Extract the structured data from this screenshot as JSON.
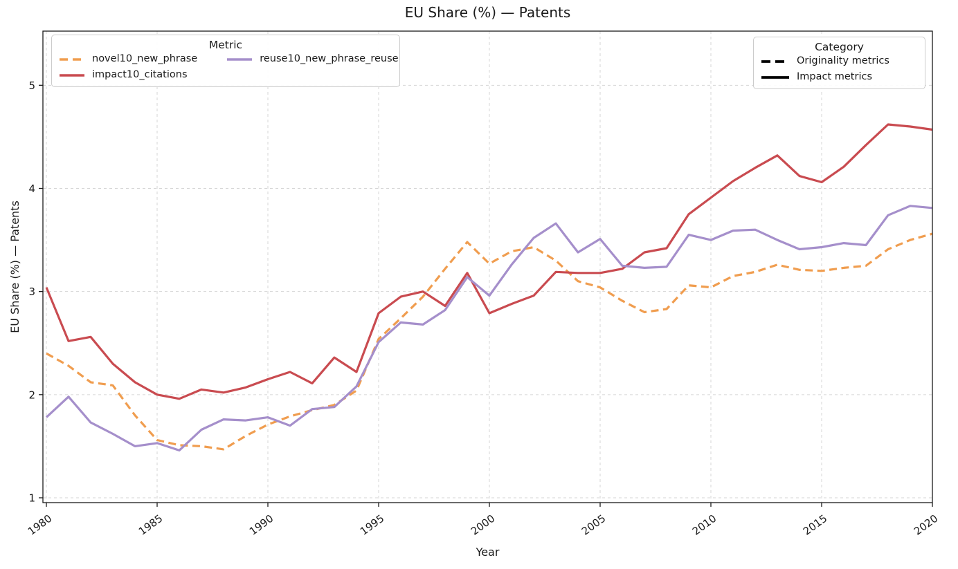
{
  "chart_data": {
    "type": "line",
    "title": "EU Share (%) — Patents",
    "xlabel": "Year",
    "ylabel": "EU Share (%) — Patents",
    "x_ticks": [
      1980,
      1985,
      1990,
      1995,
      2000,
      2005,
      2010,
      2015,
      2020
    ],
    "y_ticks": [
      1,
      2,
      3,
      4,
      5
    ],
    "xlim": [
      1980,
      2020
    ],
    "ylim": [
      0.95,
      5.53
    ],
    "grid": true,
    "grid_style": "dashed",
    "x": [
      1980,
      1981,
      1982,
      1983,
      1984,
      1985,
      1986,
      1987,
      1988,
      1989,
      1990,
      1991,
      1992,
      1993,
      1994,
      1995,
      1996,
      1997,
      1998,
      1999,
      2000,
      2001,
      2002,
      2003,
      2004,
      2005,
      2006,
      2007,
      2008,
      2009,
      2010,
      2011,
      2012,
      2013,
      2014,
      2015,
      2016,
      2017,
      2018,
      2019,
      2020
    ],
    "series": [
      {
        "name": "novel10_new_phrase",
        "category": "Originality metrics",
        "style": "dashed",
        "color": "#F09D4F",
        "values": [
          2.4,
          2.28,
          2.12,
          2.09,
          1.8,
          1.56,
          1.51,
          1.5,
          1.47,
          1.6,
          1.71,
          1.79,
          1.85,
          1.9,
          2.04,
          2.54,
          2.74,
          2.95,
          3.22,
          3.48,
          3.27,
          3.39,
          3.43,
          3.3,
          3.1,
          3.04,
          2.91,
          2.8,
          2.83,
          3.06,
          3.04,
          3.15,
          3.19,
          3.26,
          3.21,
          3.2,
          3.23,
          3.25,
          3.41,
          3.5,
          3.56
        ]
      },
      {
        "name": "impact10_citations",
        "category": "Impact metrics",
        "style": "solid",
        "color": "#C94B50",
        "values": [
          3.04,
          2.52,
          2.56,
          2.3,
          2.12,
          2.0,
          1.96,
          2.05,
          2.02,
          2.07,
          2.15,
          2.22,
          2.11,
          2.36,
          2.22,
          2.79,
          2.95,
          3.0,
          2.86,
          3.18,
          2.79,
          2.88,
          2.96,
          3.19,
          3.18,
          3.18,
          3.22,
          3.38,
          3.42,
          3.75,
          3.91,
          4.07,
          4.2,
          4.32,
          4.12,
          4.06,
          4.21,
          4.42,
          4.62,
          4.6,
          4.57
        ]
      },
      {
        "name": "reuse10_new_phrase_reuse",
        "category": "Impact metrics",
        "style": "solid",
        "color": "#A58FCB",
        "values": [
          1.78,
          1.98,
          1.73,
          1.62,
          1.5,
          1.53,
          1.46,
          1.66,
          1.76,
          1.75,
          1.78,
          1.7,
          1.86,
          1.88,
          2.08,
          2.51,
          2.7,
          2.68,
          2.82,
          3.14,
          2.96,
          3.26,
          3.52,
          3.66,
          3.38,
          3.51,
          3.25,
          3.23,
          3.24,
          3.55,
          3.5,
          3.59,
          3.6,
          3.5,
          3.41,
          3.43,
          3.47,
          3.45,
          3.74,
          3.83,
          3.81
        ]
      }
    ],
    "legend_metric": {
      "title": "Metric",
      "position": "upper-left"
    },
    "legend_category": {
      "title": "Category",
      "position": "upper-right",
      "items": [
        {
          "label": "Originality metrics",
          "style": "dashed",
          "color": "#000000"
        },
        {
          "label": "Impact metrics",
          "style": "solid",
          "color": "#000000"
        }
      ]
    },
    "colors": {
      "grid": "#d5d5d5",
      "spine": "#1a1a1a",
      "text": "#1a1a1a"
    }
  }
}
